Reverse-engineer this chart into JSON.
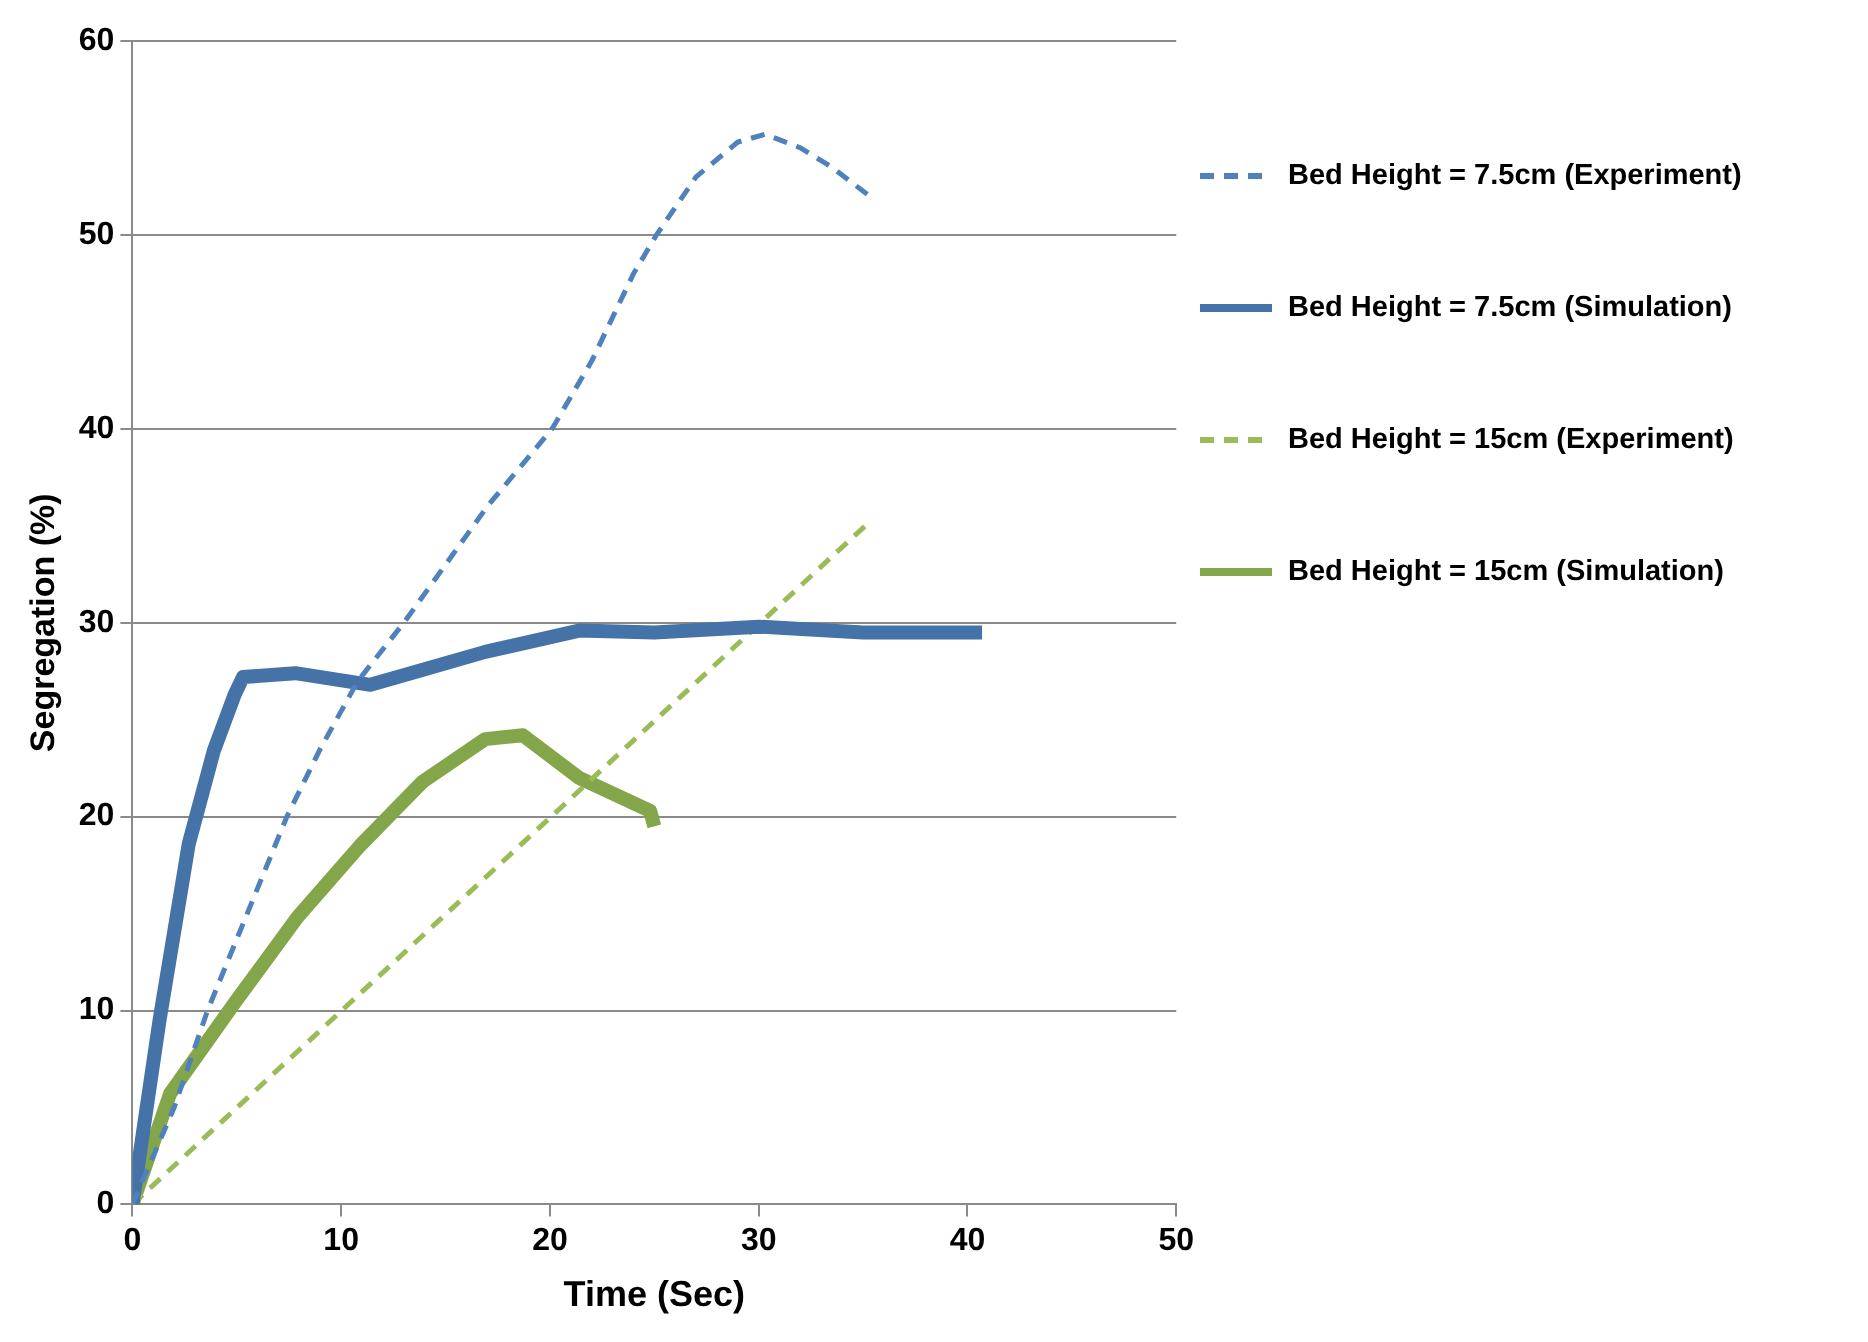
{
  "chart_data": {
    "type": "line",
    "xlabel": "Time (Sec)",
    "ylabel": "Segregation (%)",
    "xlim": [
      0,
      50
    ],
    "xticks": [
      0,
      10,
      20,
      30,
      40,
      50
    ],
    "ylim": [
      0,
      60
    ],
    "yticks": [
      0,
      10,
      20,
      30,
      40,
      50,
      60
    ],
    "grid": "y",
    "legend": "right",
    "marker": "none",
    "series": [
      {
        "name": "Bed Height = 7.5cm (Experiment)",
        "color": "#4f81bd",
        "line_style": "dashed",
        "x": [
          0,
          2,
          3.6,
          5.5,
          7.4,
          9,
          10.8,
          13,
          15,
          17,
          20.1,
          22,
          24,
          25.1,
          27,
          29,
          30.3,
          32,
          33.5,
          35.2
        ],
        "values": [
          0,
          5,
          10,
          15,
          20,
          23.5,
          27,
          30,
          33,
          36,
          40,
          43.5,
          48,
          50,
          53,
          54.8,
          55.2,
          54.5,
          53.5,
          52.1
        ]
      },
      {
        "name": "Bed Height = 7.5cm (Simulation)",
        "color": "#4572a7",
        "line_style": "solid",
        "x": [
          0,
          1.3,
          2.7,
          3.9,
          4.9,
          5.3,
          7.8,
          11.4,
          14,
          16.9,
          21.4,
          25,
          30,
          35,
          40.7
        ],
        "values": [
          0,
          9.5,
          18.6,
          23.4,
          26.3,
          27.2,
          27.4,
          26.8,
          27.6,
          28.5,
          29.6,
          29.5,
          29.8,
          29.5,
          29.5
        ]
      },
      {
        "name": "Bed Height = 15cm (Experiment)",
        "color": "#9bbb59",
        "line_style": "dashed",
        "x": [
          0,
          35.2
        ],
        "values": [
          0,
          35.1
        ]
      },
      {
        "name": "Bed Height = 15cm (Simulation)",
        "color": "#84a64a",
        "line_style": "solid",
        "x": [
          0,
          1.8,
          4.9,
          7.9,
          10.9,
          13.9,
          16.9,
          18.7,
          21.4,
          24.8,
          25
        ],
        "values": [
          0,
          5.7,
          10.4,
          14.8,
          18.5,
          21.8,
          24,
          24.2,
          22,
          20.3,
          19.5
        ]
      }
    ]
  }
}
